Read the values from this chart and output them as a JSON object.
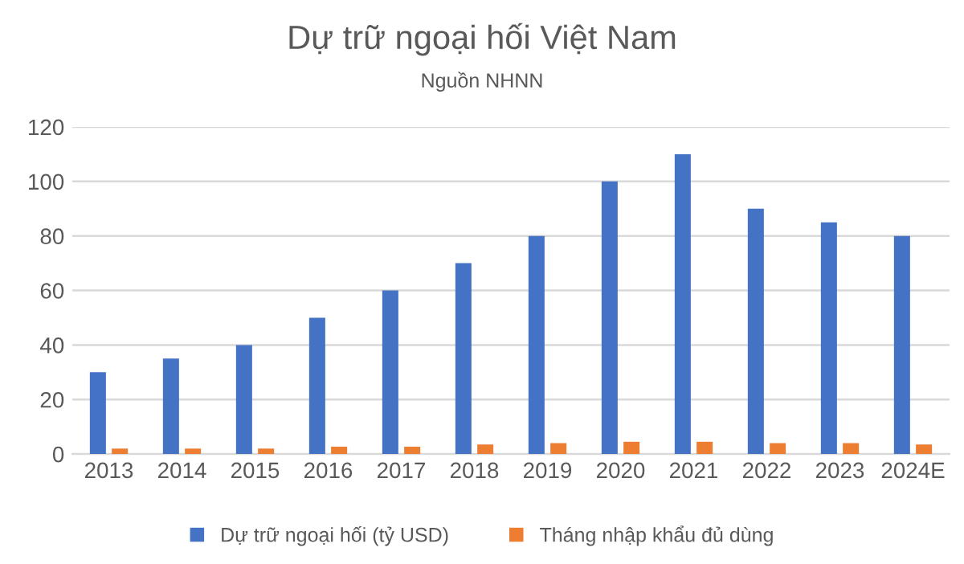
{
  "chart_data": {
    "type": "bar",
    "title": "Dự trữ ngoại hối Việt Nam",
    "subtitle": "Nguồn NHNN",
    "categories": [
      "2013",
      "2014",
      "2015",
      "2016",
      "2017",
      "2018",
      "2019",
      "2020",
      "2021",
      "2022",
      "2023",
      "2024E"
    ],
    "series": [
      {
        "name": "Dự trữ ngoại hối (tỷ USD)",
        "color": "#4472c4",
        "values": [
          30,
          35,
          40,
          50,
          60,
          70,
          80,
          100,
          110,
          90,
          85,
          80
        ]
      },
      {
        "name": "Tháng nhập khẩu đủ dùng",
        "color": "#ed7d31",
        "values": [
          2,
          2,
          2,
          2.7,
          2.7,
          3.5,
          4,
          4.5,
          4.5,
          4,
          4,
          3.5
        ]
      }
    ],
    "ylim": [
      0,
      120
    ],
    "yticks": [
      0,
      20,
      40,
      60,
      80,
      100,
      120
    ],
    "grid": "y",
    "legend": "bottom"
  }
}
